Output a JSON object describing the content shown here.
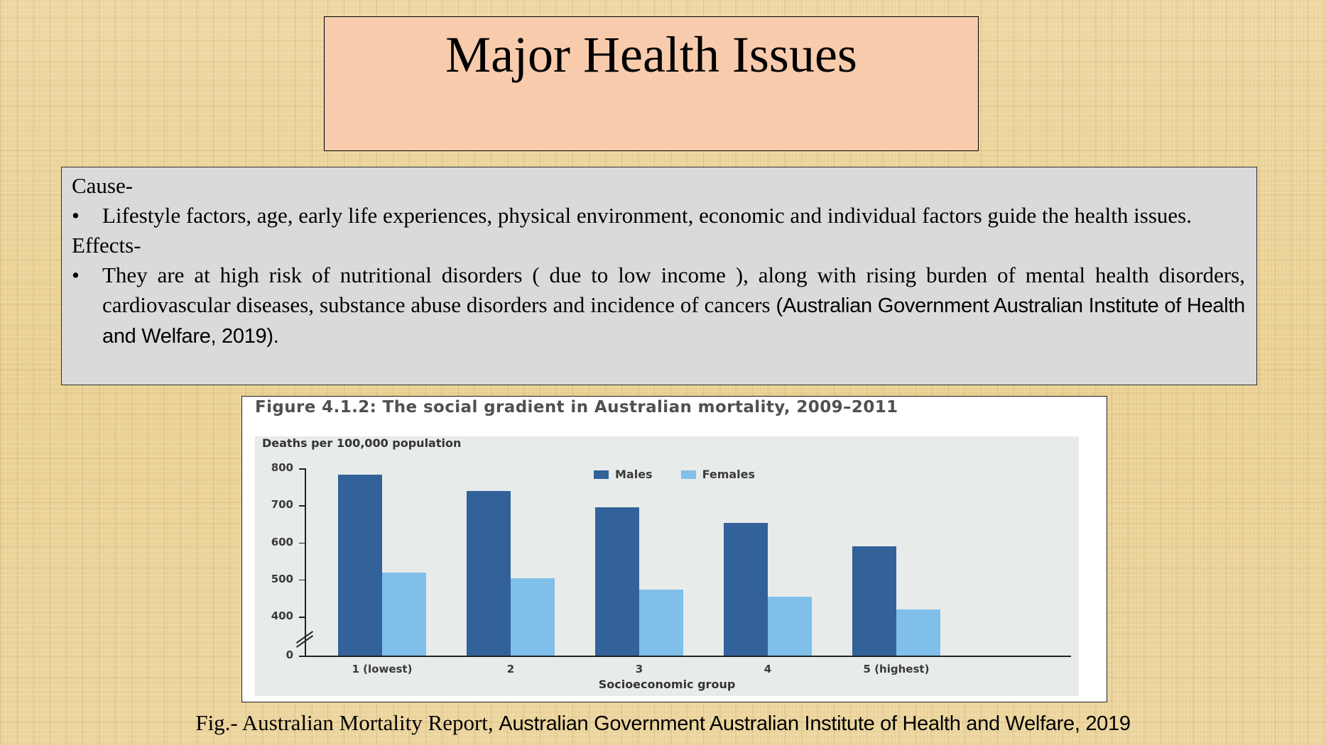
{
  "slide": {
    "title": "Major Health Issues",
    "content": {
      "cause_heading": "Cause-",
      "cause_bullet": "Lifestyle factors, age, early life experiences, physical environment, economic and individual factors guide the health issues.",
      "effects_heading": "Effects-",
      "effects_bullet_main": "They are at high risk of nutritional disorders ( due to low income ), along with rising burden of mental health disorders, cardiovascular diseases, substance abuse disorders and incidence of cancers ",
      "effects_bullet_citation": "(Australian Government Australian Institute of Health and Welfare, 2019).",
      "bullet_glyph": "•"
    },
    "caption_prefix": "Fig.- Australian Mortality Report, ",
    "caption_source": "Australian Government Australian Institute of Health and Welfare, 2019"
  },
  "figure": {
    "title": "Figure 4.1.2: The social gradient in Australian mortality, 2009–2011",
    "colors": {
      "males": "#336199",
      "females": "#7fbfea",
      "panel": "#e7ebe9"
    }
  },
  "chart_data": {
    "type": "bar",
    "title": "Figure 4.1.2: The social gradient in Australian mortality, 2009–2011",
    "xlabel": "Socioeconomic group",
    "ylabel": "Deaths per 100,000 population",
    "categories": [
      "1 (lowest)",
      "2",
      "3",
      "4",
      "5 (highest)"
    ],
    "series": [
      {
        "name": "Males",
        "values": [
          783,
          738,
          694,
          652,
          590
        ]
      },
      {
        "name": "Females",
        "values": [
          518,
          503,
          472,
          453,
          420
        ]
      }
    ],
    "yticks": [
      "800",
      "700",
      "600",
      "500",
      "400",
      "0"
    ],
    "ylim": [
      0,
      800
    ],
    "axis_break": "between 0 and 400",
    "legend_position": "top-center",
    "grid": false
  }
}
